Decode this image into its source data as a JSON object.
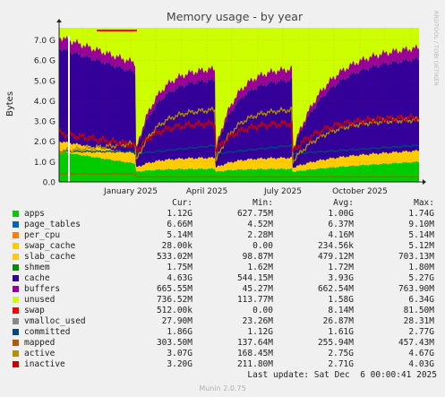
{
  "chart_data": {
    "type": "area",
    "title": "Memory usage - by year",
    "ylabel": "Bytes",
    "side_label": "RRDTOOL / TOBI OETIKER",
    "y_ticks": [
      "0.0",
      "1.0 G",
      "2.0 G",
      "3.0 G",
      "4.0 G",
      "5.0 G",
      "6.0 G",
      "7.0 G"
    ],
    "ylim": [
      0,
      7.6
    ],
    "x_ticks": [
      "January 2025",
      "April 2025",
      "July 2025",
      "October 2025"
    ],
    "grid": true,
    "colors": {
      "apps": "#00cc00",
      "page_tables": "#0066b3",
      "per_cpu": "#ff8000",
      "swap_cache": "#ffcc00",
      "slab_cache": "#ffcc00",
      "shmem": "#008f00",
      "cache": "#330099",
      "buffers": "#990099",
      "unused": "#ccff00",
      "swap": "#ff0000",
      "vmalloc_used": "#888888",
      "committed": "#00487d",
      "mapped": "#b35a00",
      "active": "#b38f00",
      "inactive": "#cc0000",
      "background": "#ffffff"
    },
    "stack_values": {
      "x": [
        "Dec 2024",
        "early Jan 2025",
        "late Mar 2025",
        "early Apr 2025",
        "mid Jun 2025",
        "early Jul 2025",
        "Nov 2025"
      ],
      "apps": [
        1.5,
        0.5,
        0.6,
        0.4,
        0.65,
        0.5,
        0.9
      ],
      "slab_cache": [
        0.5,
        0.2,
        0.5,
        0.25,
        0.6,
        0.3,
        0.6
      ],
      "cache": [
        4.6,
        0.9,
        3.9,
        0.6,
        3.9,
        0.8,
        4.6
      ],
      "buffers": [
        0.5,
        0.0,
        0.4,
        0.0,
        0.4,
        0.0,
        0.55
      ],
      "active": [
        1.5,
        1.0,
        3.6,
        0.9,
        3.6,
        1.0,
        3.1
      ],
      "inactive": [
        2.3,
        1.7,
        2.9,
        1.2,
        2.9,
        1.4,
        3.2
      ]
    },
    "series": [
      {
        "name": "apps",
        "cur": "1.12G",
        "min": "627.75M",
        "avg": "1.00G",
        "max": "1.74G"
      },
      {
        "name": "page_tables",
        "cur": "6.66M",
        "min": "4.52M",
        "avg": "6.37M",
        "max": "9.10M"
      },
      {
        "name": "per_cpu",
        "cur": "5.14M",
        "min": "2.28M",
        "avg": "4.16M",
        "max": "5.14M"
      },
      {
        "name": "swap_cache",
        "cur": "28.00k",
        "min": "0.00",
        "avg": "234.56k",
        "max": "5.12M"
      },
      {
        "name": "slab_cache",
        "cur": "533.02M",
        "min": "98.87M",
        "avg": "479.12M",
        "max": "703.13M"
      },
      {
        "name": "shmem",
        "cur": "1.75M",
        "min": "1.62M",
        "avg": "1.72M",
        "max": "1.80M"
      },
      {
        "name": "cache",
        "cur": "4.63G",
        "min": "544.15M",
        "avg": "3.93G",
        "max": "5.27G"
      },
      {
        "name": "buffers",
        "cur": "665.55M",
        "min": "45.27M",
        "avg": "662.54M",
        "max": "763.90M"
      },
      {
        "name": "unused",
        "cur": "736.52M",
        "min": "113.77M",
        "avg": "1.58G",
        "max": "6.34G"
      },
      {
        "name": "swap",
        "cur": "512.00k",
        "min": "0.00",
        "avg": "8.14M",
        "max": "81.50M"
      },
      {
        "name": "vmalloc_used",
        "cur": "27.90M",
        "min": "23.26M",
        "avg": "26.87M",
        "max": "28.31M"
      },
      {
        "name": "committed",
        "cur": "1.86G",
        "min": "1.12G",
        "avg": "1.61G",
        "max": "2.77G"
      },
      {
        "name": "mapped",
        "cur": "303.50M",
        "min": "137.64M",
        "avg": "255.94M",
        "max": "457.43M"
      },
      {
        "name": "active",
        "cur": "3.07G",
        "min": "168.45M",
        "avg": "2.75G",
        "max": "4.67G"
      },
      {
        "name": "inactive",
        "cur": "3.20G",
        "min": "211.80M",
        "avg": "2.71G",
        "max": "4.03G"
      }
    ]
  },
  "legend": {
    "col_cur": "Cur:",
    "col_min": "Min:",
    "col_avg": "Avg:",
    "col_max": "Max:"
  },
  "last_update": "Last update: Sat Dec  6 00:00:41 2025",
  "footer": "Munin 2.0.75"
}
